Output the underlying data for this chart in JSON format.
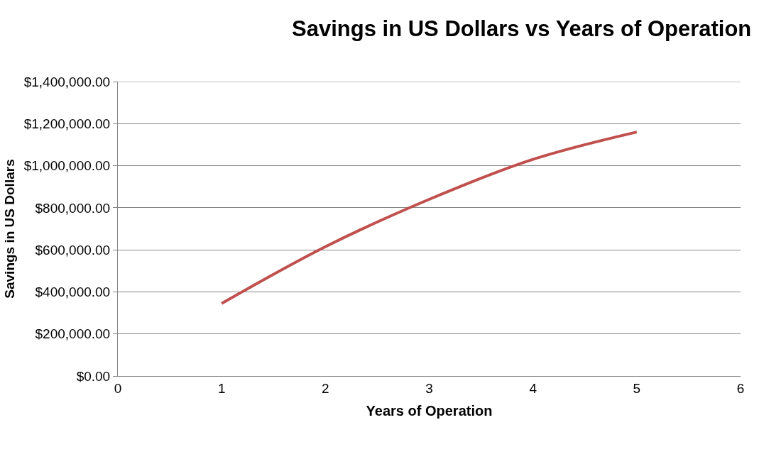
{
  "chart_data": {
    "type": "line",
    "title": "Savings in US Dollars vs Years of Operation",
    "xlabel": "Years of Operation",
    "ylabel": "Savings in US Dollars",
    "x": [
      1,
      2,
      3,
      4,
      5
    ],
    "series": [
      {
        "color": "#c0504d",
        "values": [
          345000,
          615000,
          840000,
          1030000,
          1160000
        ]
      }
    ],
    "xlim": [
      0,
      6
    ],
    "xticks": [
      0,
      1,
      2,
      3,
      4,
      5,
      6
    ],
    "ylim": [
      0,
      1400000
    ],
    "yticks": [
      {
        "value": 0,
        "label": "$0.00"
      },
      {
        "value": 200000,
        "label": "$200,000.00"
      },
      {
        "value": 400000,
        "label": "$400,000.00"
      },
      {
        "value": 600000,
        "label": "$600,000.00"
      },
      {
        "value": 800000,
        "label": "$800,000.00"
      },
      {
        "value": 1000000,
        "label": "$1,000,000.00"
      },
      {
        "value": 1200000,
        "label": "$1,200,000.00"
      },
      {
        "value": 1400000,
        "label": "$1,400,000.00"
      }
    ],
    "grid": "y",
    "marker": "none",
    "line_style": "solid"
  }
}
